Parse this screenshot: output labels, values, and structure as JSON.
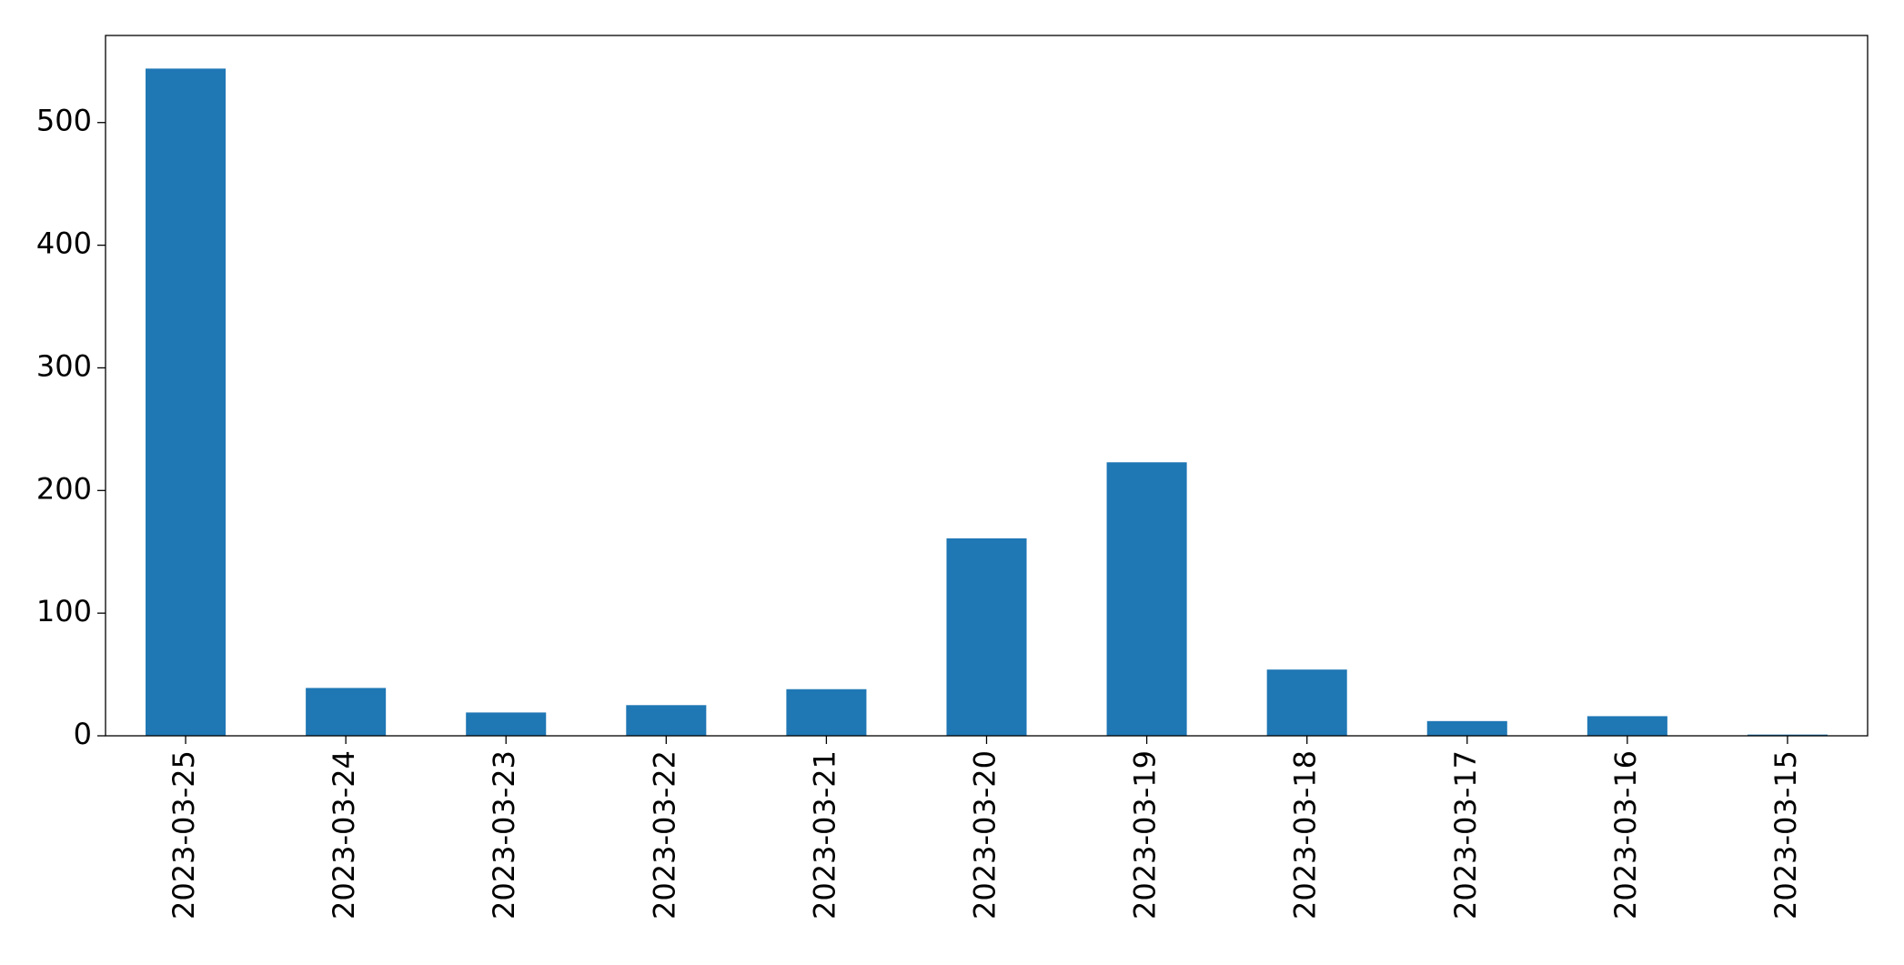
{
  "chart_data": {
    "type": "bar",
    "categories": [
      "2023-03-25",
      "2023-03-24",
      "2023-03-23",
      "2023-03-22",
      "2023-03-21",
      "2023-03-20",
      "2023-03-19",
      "2023-03-18",
      "2023-03-17",
      "2023-03-16",
      "2023-03-15"
    ],
    "values": [
      544,
      39,
      19,
      25,
      38,
      161,
      223,
      54,
      12,
      16,
      1
    ],
    "color": "#1f77b4",
    "ylim": [
      0,
      571
    ],
    "yticks": [
      0,
      100,
      200,
      300,
      400,
      500
    ],
    "grid": false
  }
}
